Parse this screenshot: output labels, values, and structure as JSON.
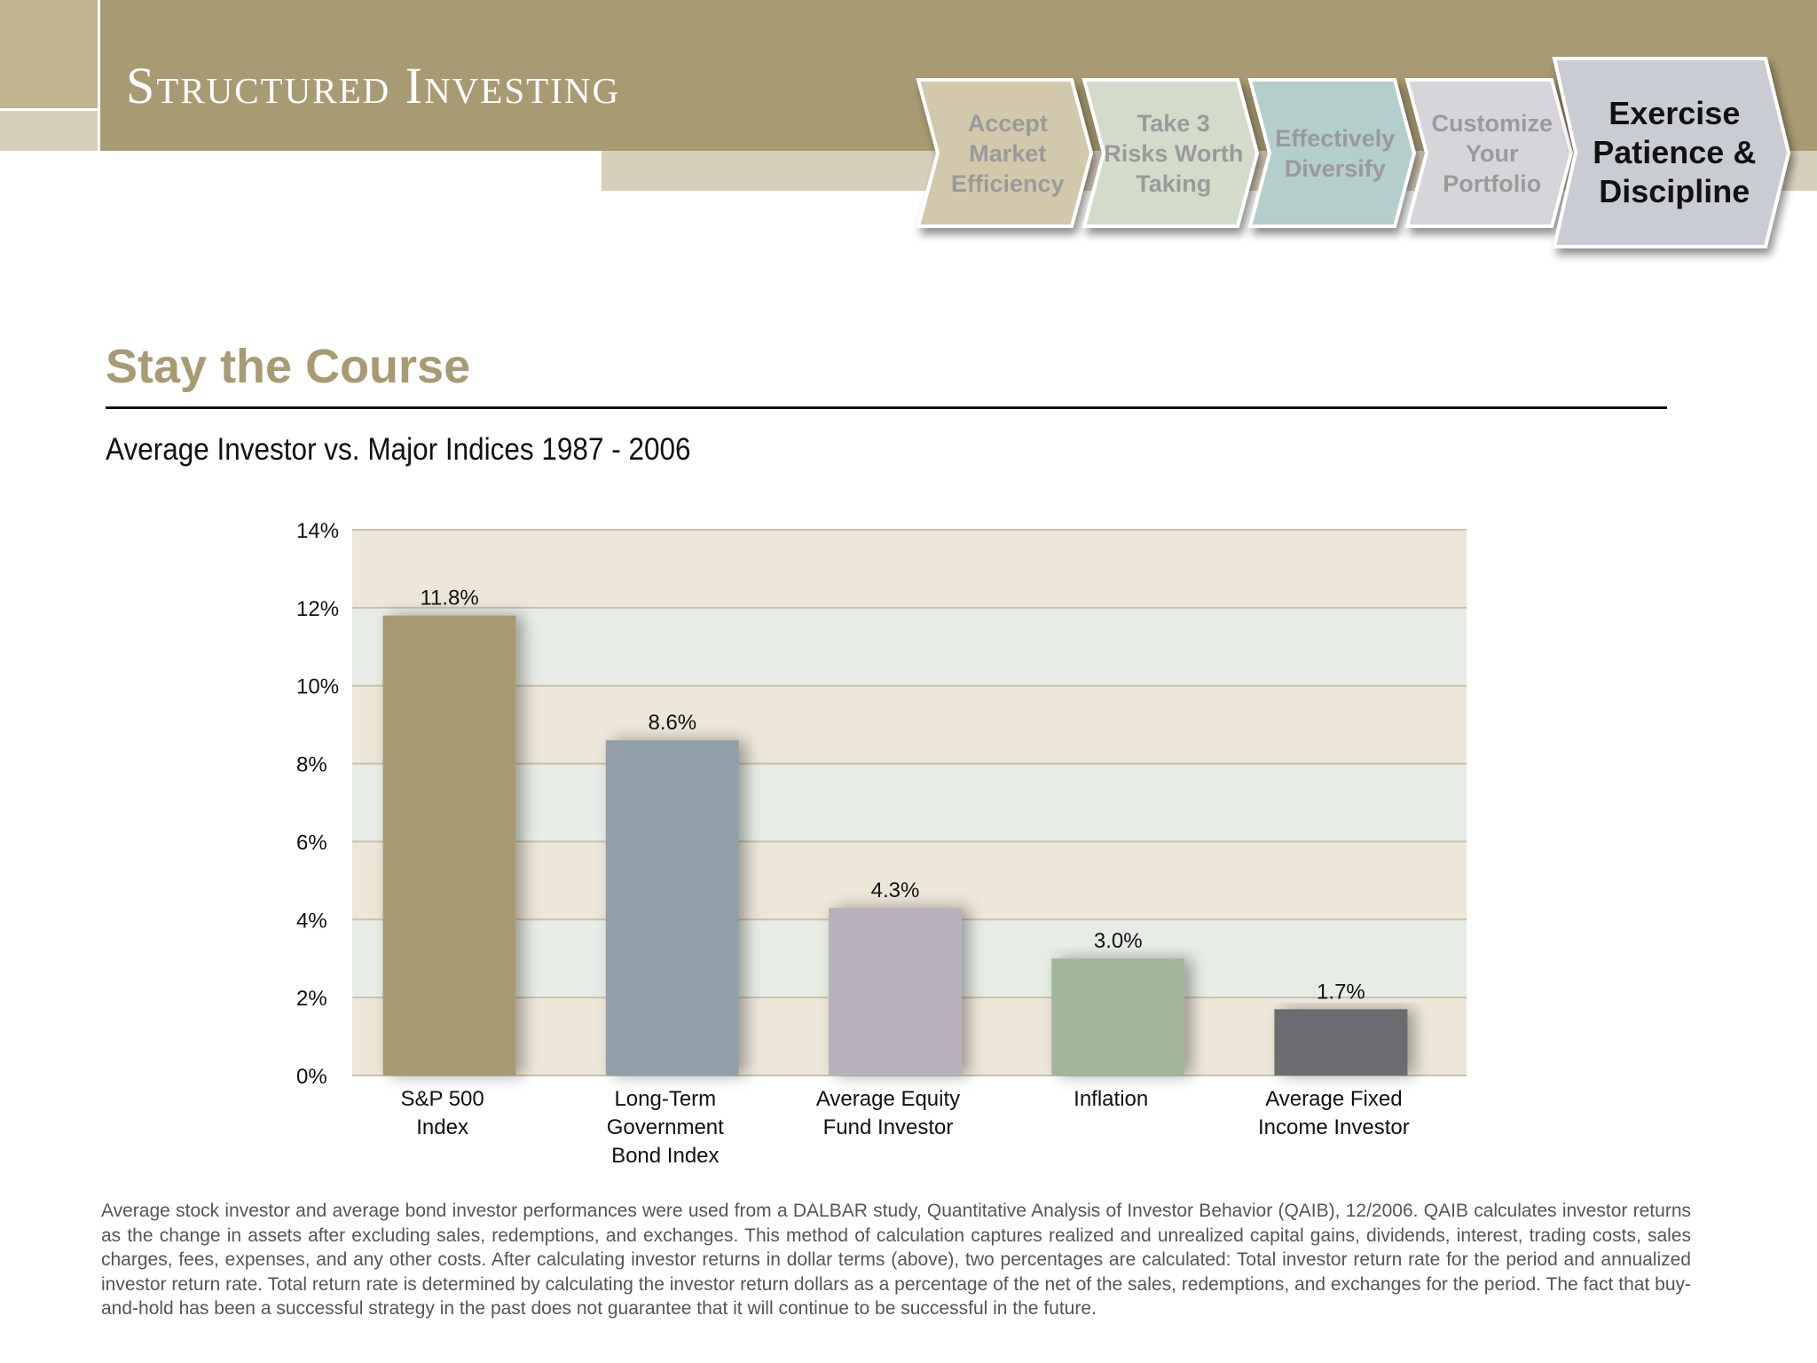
{
  "header": {
    "brand_title": "Structured Investing",
    "steps": [
      {
        "label": "Accept\nMarket\nEfficiency",
        "color": "#d2c9ad",
        "active": false
      },
      {
        "label": "Take 3\nRisks Worth\nTaking",
        "color": "#d3dccb",
        "active": false
      },
      {
        "label": "Effectively\nDiversify",
        "color": "#b3cecb",
        "active": false
      },
      {
        "label": "Customize\nYour\nPortfolio",
        "color": "#d7d4da",
        "active": false
      },
      {
        "label": "Exercise\nPatience &\nDiscipline",
        "color": "#c9cdd3",
        "active": true
      }
    ]
  },
  "page": {
    "section_title": "Stay the Course",
    "chart_title": "Average Investor vs. Major Indices 1987 - 2006"
  },
  "chart_data": {
    "type": "bar",
    "categories": [
      "S&P 500\nIndex",
      "Long-Term\nGovernment\nBond Index",
      "Average Equity\nFund Investor",
      "Inflation",
      "Average Fixed\nIncome Investor"
    ],
    "values": [
      11.8,
      8.6,
      4.3,
      3.0,
      1.7
    ],
    "value_labels": [
      "11.8%",
      "8.6%",
      "4.3%",
      "3.0%",
      "1.7%"
    ],
    "bar_colors": [
      "#a89a6f",
      "#929fa8",
      "#b9b1bd",
      "#a3b69a",
      "#6c6c70"
    ],
    "ylim": [
      0,
      14
    ],
    "yticks": [
      0,
      2,
      4,
      6,
      8,
      10,
      12,
      14
    ],
    "ytick_labels": [
      "0%",
      "2%",
      "4%",
      "6%",
      "8%",
      "10%",
      "12%",
      "14%"
    ],
    "grid": true,
    "plot_band_colors": [
      "#ede7da",
      "#e7ede6"
    ],
    "xlabel": "",
    "ylabel": ""
  },
  "footnote": "Average stock investor and average bond investor performances were used from a DALBAR study, Quantitative Analysis of Investor Behavior (QAIB), 12/2006. QAIB calculates investor returns as the change in assets after excluding sales, redemptions, and exchanges. This method of calculation captures realized and unrealized capital gains, dividends, interest, trading costs, sales charges, fees, expenses, and any other costs. After calculating investor returns in dollar terms (above), two percentages are calculated: Total investor return rate for the period and annualized investor return rate. Total return rate is determined by calculating the investor return dollars as a percentage of the net of the sales, redemptions, and exchanges for the period.  The fact that buy-and-hold has been a successful strategy in the past does not guarantee that it will continue to be successful in the future."
}
